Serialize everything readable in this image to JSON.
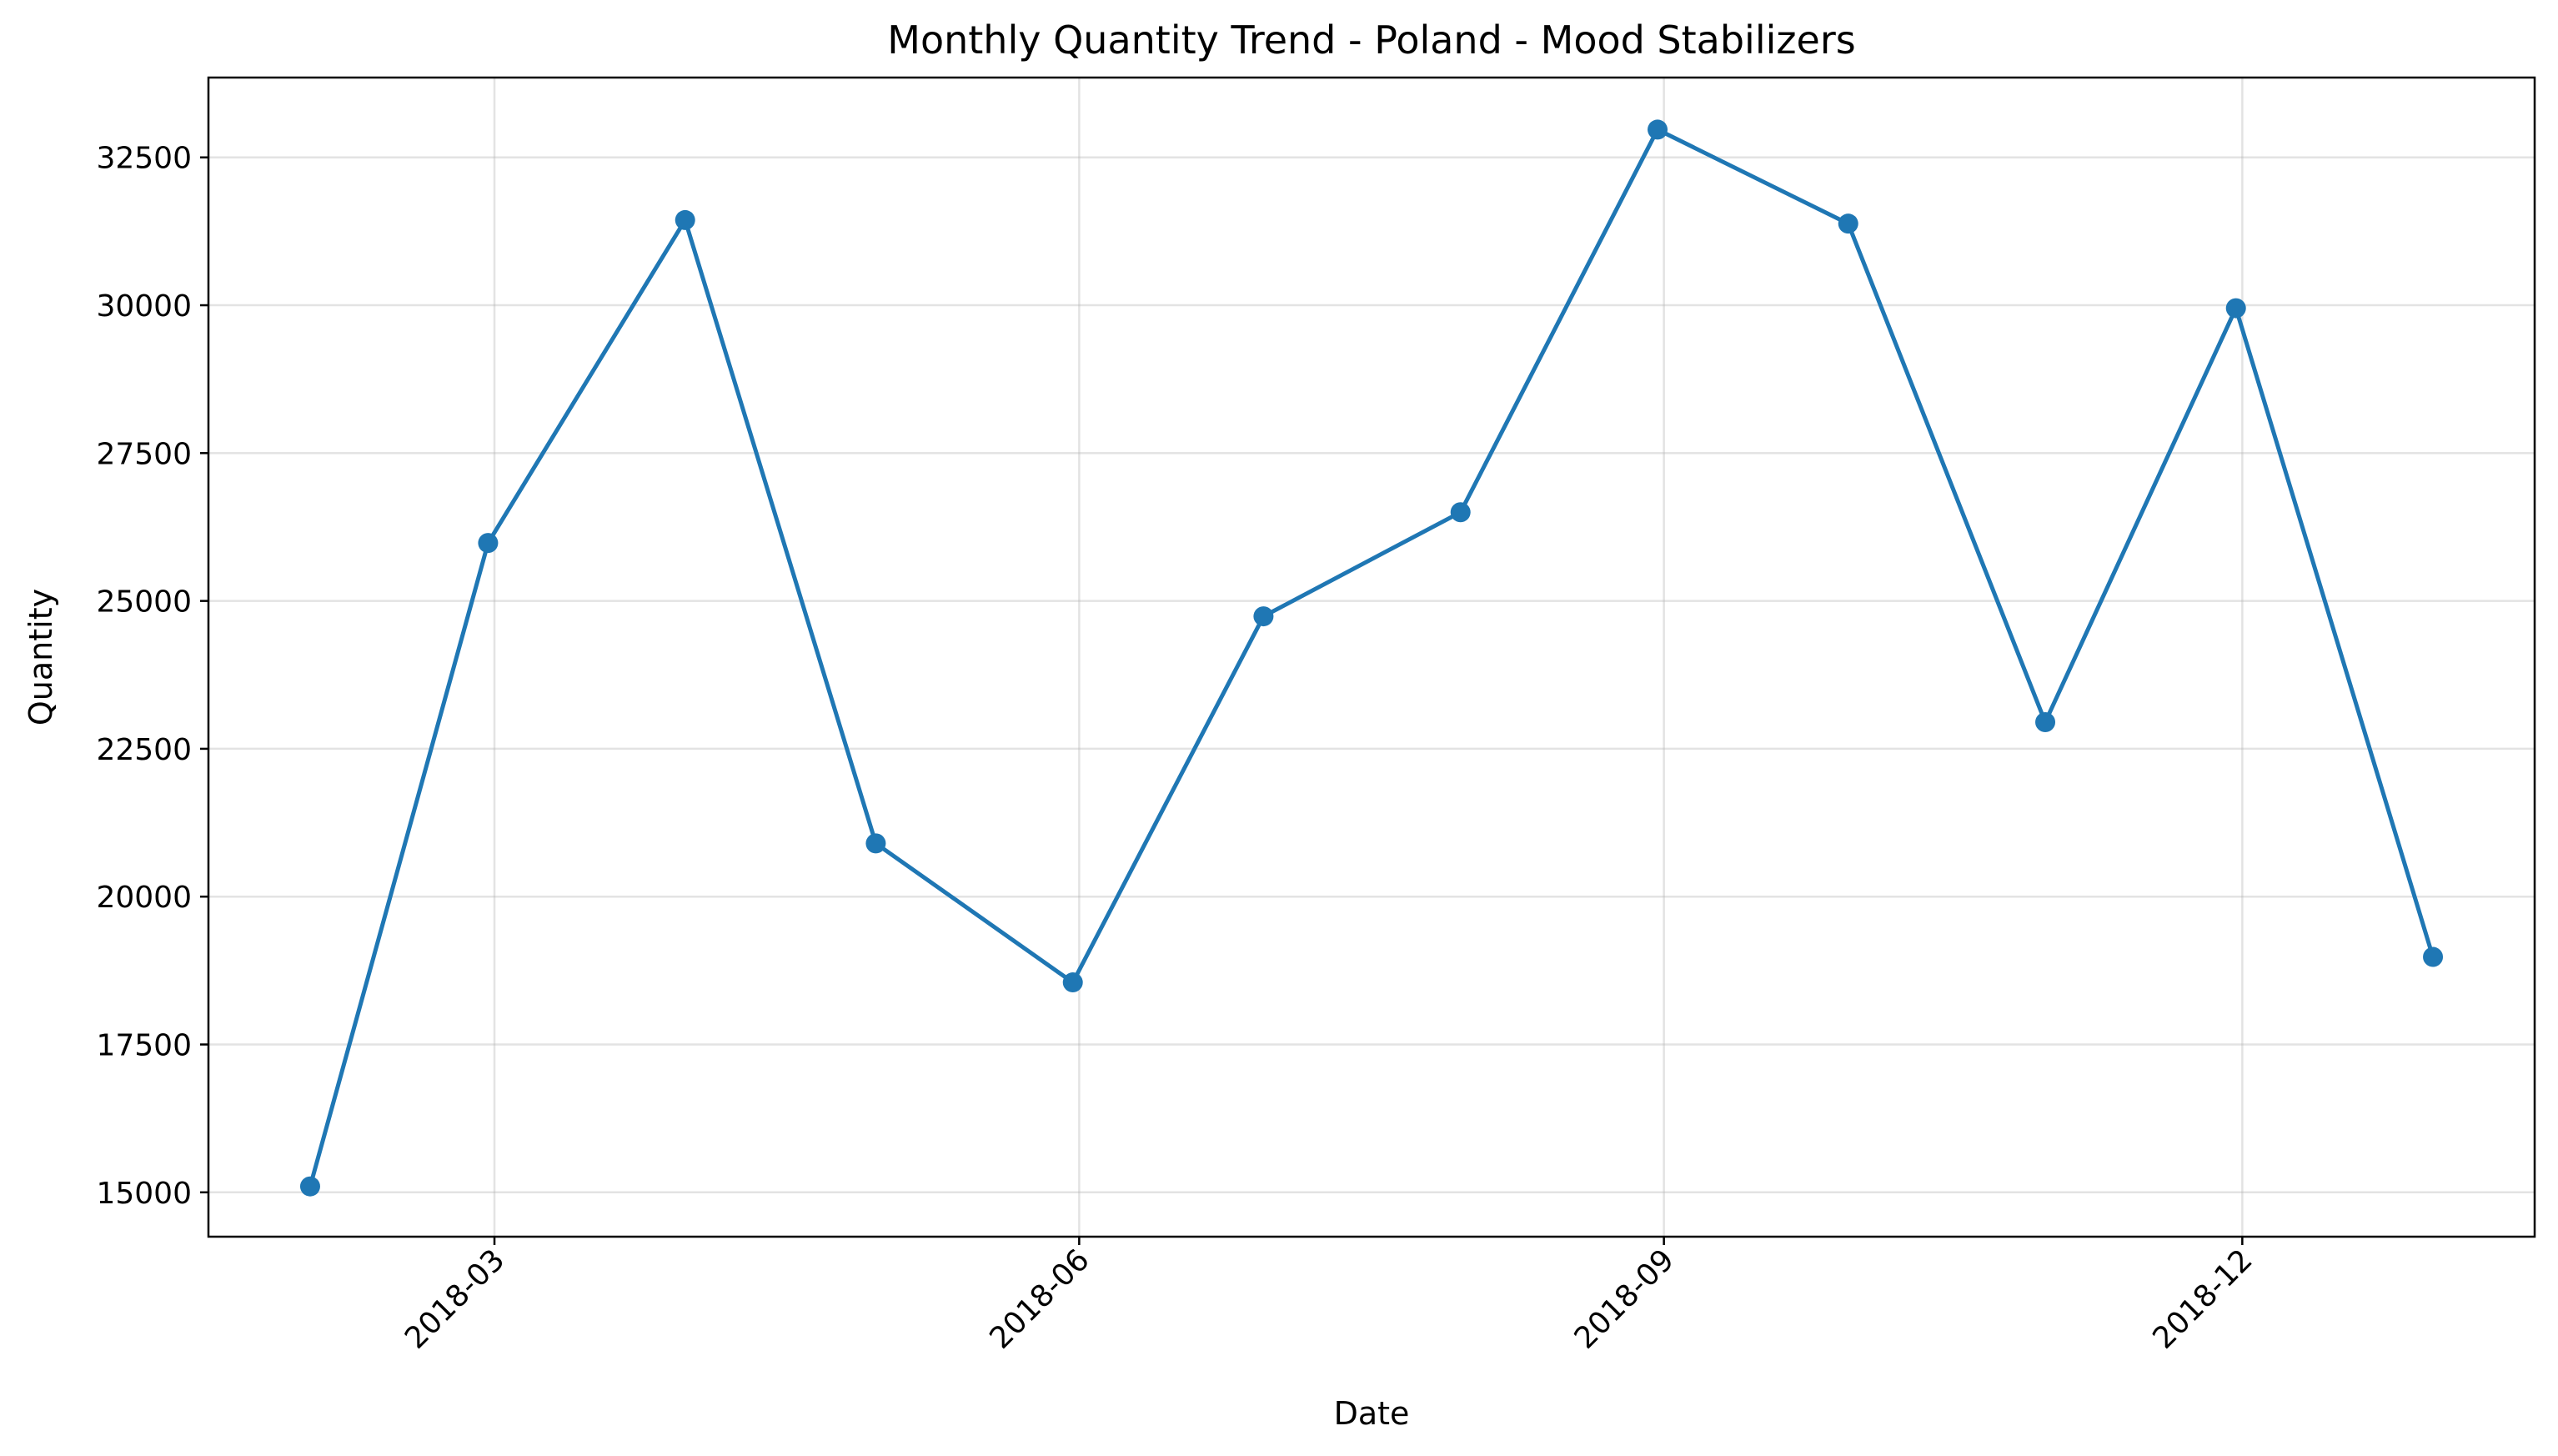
{
  "chart_data": {
    "type": "line",
    "title": "Monthly Quantity Trend - Poland - Mood Stabilizers",
    "xlabel": "Date",
    "ylabel": "Quantity",
    "x": [
      "2018-01-31",
      "2018-02-28",
      "2018-03-31",
      "2018-04-30",
      "2018-05-31",
      "2018-06-30",
      "2018-07-31",
      "2018-08-31",
      "2018-09-30",
      "2018-10-31",
      "2018-11-30",
      "2018-12-31"
    ],
    "series": [
      {
        "values": [
          15100,
          25980,
          31440,
          20900,
          18550,
          24740,
          26500,
          32970,
          31380,
          22950,
          29950,
          18980
        ]
      }
    ],
    "xlim": [
      "2018-01-15",
      "2019-01-16"
    ],
    "ylim": [
      14250,
      33850
    ],
    "xticks": [
      {
        "date": "2018-03-01",
        "label": "2018-03"
      },
      {
        "date": "2018-06-01",
        "label": "2018-06"
      },
      {
        "date": "2018-09-01",
        "label": "2018-09"
      },
      {
        "date": "2018-12-01",
        "label": "2018-12"
      }
    ],
    "yticks": [
      15000,
      17500,
      20000,
      22500,
      25000,
      27500,
      30000,
      32500
    ],
    "grid": true,
    "color": "#1f77b4"
  }
}
